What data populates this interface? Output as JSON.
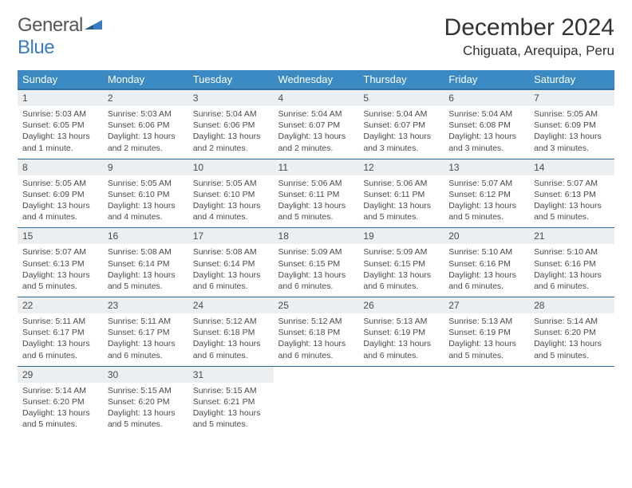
{
  "brand": {
    "name_part1": "General",
    "name_part2": "Blue"
  },
  "title": "December 2024",
  "location": "Chiguata, Arequipa, Peru",
  "colors": {
    "header_bg": "#3b8ac4",
    "header_border": "#2f6fa0",
    "daynum_bg": "#eceff1",
    "text": "#4a4a4a",
    "brand_gray": "#555555",
    "brand_blue": "#3b7bbf"
  },
  "weekdays": [
    "Sunday",
    "Monday",
    "Tuesday",
    "Wednesday",
    "Thursday",
    "Friday",
    "Saturday"
  ],
  "weeks": [
    [
      {
        "n": "1",
        "sr": "5:03 AM",
        "ss": "6:05 PM",
        "dl": "13 hours and 1 minute."
      },
      {
        "n": "2",
        "sr": "5:03 AM",
        "ss": "6:06 PM",
        "dl": "13 hours and 2 minutes."
      },
      {
        "n": "3",
        "sr": "5:04 AM",
        "ss": "6:06 PM",
        "dl": "13 hours and 2 minutes."
      },
      {
        "n": "4",
        "sr": "5:04 AM",
        "ss": "6:07 PM",
        "dl": "13 hours and 2 minutes."
      },
      {
        "n": "5",
        "sr": "5:04 AM",
        "ss": "6:07 PM",
        "dl": "13 hours and 3 minutes."
      },
      {
        "n": "6",
        "sr": "5:04 AM",
        "ss": "6:08 PM",
        "dl": "13 hours and 3 minutes."
      },
      {
        "n": "7",
        "sr": "5:05 AM",
        "ss": "6:09 PM",
        "dl": "13 hours and 3 minutes."
      }
    ],
    [
      {
        "n": "8",
        "sr": "5:05 AM",
        "ss": "6:09 PM",
        "dl": "13 hours and 4 minutes."
      },
      {
        "n": "9",
        "sr": "5:05 AM",
        "ss": "6:10 PM",
        "dl": "13 hours and 4 minutes."
      },
      {
        "n": "10",
        "sr": "5:05 AM",
        "ss": "6:10 PM",
        "dl": "13 hours and 4 minutes."
      },
      {
        "n": "11",
        "sr": "5:06 AM",
        "ss": "6:11 PM",
        "dl": "13 hours and 5 minutes."
      },
      {
        "n": "12",
        "sr": "5:06 AM",
        "ss": "6:11 PM",
        "dl": "13 hours and 5 minutes."
      },
      {
        "n": "13",
        "sr": "5:07 AM",
        "ss": "6:12 PM",
        "dl": "13 hours and 5 minutes."
      },
      {
        "n": "14",
        "sr": "5:07 AM",
        "ss": "6:13 PM",
        "dl": "13 hours and 5 minutes."
      }
    ],
    [
      {
        "n": "15",
        "sr": "5:07 AM",
        "ss": "6:13 PM",
        "dl": "13 hours and 5 minutes."
      },
      {
        "n": "16",
        "sr": "5:08 AM",
        "ss": "6:14 PM",
        "dl": "13 hours and 5 minutes."
      },
      {
        "n": "17",
        "sr": "5:08 AM",
        "ss": "6:14 PM",
        "dl": "13 hours and 6 minutes."
      },
      {
        "n": "18",
        "sr": "5:09 AM",
        "ss": "6:15 PM",
        "dl": "13 hours and 6 minutes."
      },
      {
        "n": "19",
        "sr": "5:09 AM",
        "ss": "6:15 PM",
        "dl": "13 hours and 6 minutes."
      },
      {
        "n": "20",
        "sr": "5:10 AM",
        "ss": "6:16 PM",
        "dl": "13 hours and 6 minutes."
      },
      {
        "n": "21",
        "sr": "5:10 AM",
        "ss": "6:16 PM",
        "dl": "13 hours and 6 minutes."
      }
    ],
    [
      {
        "n": "22",
        "sr": "5:11 AM",
        "ss": "6:17 PM",
        "dl": "13 hours and 6 minutes."
      },
      {
        "n": "23",
        "sr": "5:11 AM",
        "ss": "6:17 PM",
        "dl": "13 hours and 6 minutes."
      },
      {
        "n": "24",
        "sr": "5:12 AM",
        "ss": "6:18 PM",
        "dl": "13 hours and 6 minutes."
      },
      {
        "n": "25",
        "sr": "5:12 AM",
        "ss": "6:18 PM",
        "dl": "13 hours and 6 minutes."
      },
      {
        "n": "26",
        "sr": "5:13 AM",
        "ss": "6:19 PM",
        "dl": "13 hours and 6 minutes."
      },
      {
        "n": "27",
        "sr": "5:13 AM",
        "ss": "6:19 PM",
        "dl": "13 hours and 5 minutes."
      },
      {
        "n": "28",
        "sr": "5:14 AM",
        "ss": "6:20 PM",
        "dl": "13 hours and 5 minutes."
      }
    ],
    [
      {
        "n": "29",
        "sr": "5:14 AM",
        "ss": "6:20 PM",
        "dl": "13 hours and 5 minutes."
      },
      {
        "n": "30",
        "sr": "5:15 AM",
        "ss": "6:20 PM",
        "dl": "13 hours and 5 minutes."
      },
      {
        "n": "31",
        "sr": "5:15 AM",
        "ss": "6:21 PM",
        "dl": "13 hours and 5 minutes."
      },
      null,
      null,
      null,
      null
    ]
  ],
  "labels": {
    "sunrise": "Sunrise:",
    "sunset": "Sunset:",
    "daylight": "Daylight:"
  }
}
